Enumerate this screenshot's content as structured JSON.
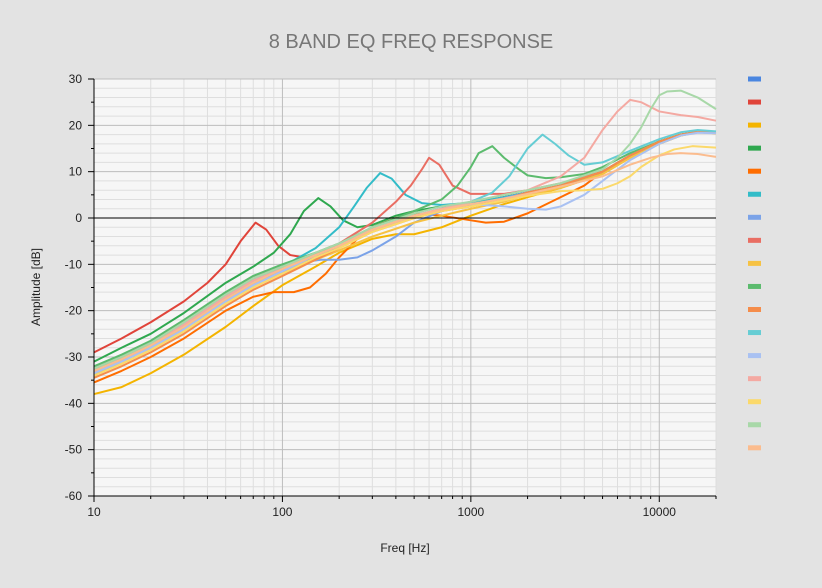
{
  "chart_data": {
    "type": "line",
    "title": "8 BAND EQ FREQ RESPONSE",
    "xlabel": "Freq [Hz]",
    "ylabel": "Amplitude [dB]",
    "x_scale": "log",
    "xlim": [
      10,
      20000
    ],
    "ylim": [
      -60,
      30
    ],
    "x_ticks": [
      10,
      100,
      1000,
      10000
    ],
    "x_tick_labels": [
      "10",
      "100",
      "1000",
      "10000"
    ],
    "y_ticks": [
      -60,
      -50,
      -40,
      -30,
      -20,
      -10,
      0,
      10,
      20,
      30
    ],
    "y_tick_labels": [
      "-60",
      "-50",
      "-40",
      "-30",
      "-20",
      "-10",
      "0",
      "10",
      "20",
      "30"
    ],
    "grid": true,
    "zero_line": true,
    "legend": "right",
    "series": [
      {
        "color": "#4a86e0",
        "x": [
          10,
          14,
          20,
          30,
          50,
          70,
          100,
          150,
          200,
          300,
          500,
          700,
          1000,
          1500,
          2000,
          3000,
          5000,
          7000,
          10000,
          13000,
          16000,
          20000
        ],
        "y": [
          -33,
          -30.5,
          -27.5,
          -23.5,
          -18,
          -14.5,
          -11.5,
          -8.5,
          -6,
          -2.5,
          0.5,
          1.8,
          3,
          4.5,
          5.5,
          7,
          10,
          13.5,
          16.5,
          18,
          18.6,
          18.5
        ]
      },
      {
        "color": "#e0443a",
        "x": [
          10,
          14,
          20,
          30,
          40,
          50,
          60,
          72,
          82,
          95,
          110,
          130,
          160,
          200,
          300,
          500,
          700,
          1000,
          1500,
          2000,
          3000,
          5000,
          7000,
          10000,
          13000,
          16000,
          20000
        ],
        "y": [
          -29,
          -26,
          -22.5,
          -18,
          -14,
          -10,
          -5,
          -1,
          -2.5,
          -6,
          -8,
          -8.5,
          -7.5,
          -6,
          -2.5,
          0.5,
          1.8,
          3,
          4.5,
          5.5,
          7,
          10,
          13.5,
          16.5,
          18,
          18.6,
          18.5
        ]
      },
      {
        "color": "#f4b400",
        "x": [
          10,
          14,
          20,
          30,
          50,
          70,
          100,
          150,
          200,
          300,
          400,
          500,
          700,
          1000,
          1500,
          2000,
          3000,
          5000,
          7000,
          10000,
          13000,
          16000,
          20000
        ],
        "y": [
          -38,
          -36.5,
          -33.5,
          -29.5,
          -23.5,
          -19,
          -14.5,
          -10.5,
          -7.5,
          -4.5,
          -3.5,
          -3.5,
          -2,
          0.5,
          3,
          4.5,
          6.5,
          9.5,
          13,
          16,
          17.8,
          18.5,
          18.3
        ]
      },
      {
        "color": "#2fa84f",
        "x": [
          10,
          14,
          20,
          30,
          50,
          70,
          90,
          110,
          130,
          155,
          180,
          210,
          250,
          300,
          400,
          500,
          700,
          1000,
          1500,
          2000,
          3000,
          5000,
          7000,
          10000,
          13000,
          16000,
          20000
        ],
        "y": [
          -31,
          -28,
          -25,
          -20.5,
          -14,
          -10.5,
          -7.5,
          -3.5,
          1.5,
          4.3,
          2.5,
          -0.5,
          -2,
          -1.5,
          0.5,
          1.5,
          2.5,
          3,
          4.5,
          5.5,
          7,
          10,
          13.5,
          16.5,
          18,
          18.6,
          18.5
        ]
      },
      {
        "color": "#ff6d00",
        "x": [
          10,
          14,
          20,
          30,
          50,
          70,
          90,
          115,
          140,
          170,
          200,
          250,
          300,
          400,
          500,
          700,
          1000,
          1200,
          1500,
          2000,
          3000,
          4000,
          5000,
          7000,
          10000,
          13000,
          16000,
          20000
        ],
        "y": [
          -35.5,
          -33,
          -30,
          -26,
          -20,
          -17,
          -16,
          -16,
          -15,
          -12,
          -8.5,
          -4.5,
          -2,
          0,
          1,
          0.5,
          -0.5,
          -1,
          -0.8,
          1,
          4.5,
          7,
          10,
          13.5,
          16.5,
          18,
          18.6,
          18.5
        ]
      },
      {
        "color": "#33bcc8",
        "x": [
          10,
          14,
          20,
          30,
          50,
          70,
          100,
          150,
          200,
          240,
          280,
          330,
          380,
          450,
          550,
          700,
          1000,
          1500,
          2000,
          3000,
          5000,
          7000,
          10000,
          13000,
          16000,
          20000
        ],
        "y": [
          -32.5,
          -30,
          -27,
          -22.5,
          -16.5,
          -13,
          -10.5,
          -6.5,
          -2,
          2.5,
          6.5,
          9.7,
          8.5,
          5,
          3.2,
          2.8,
          3.3,
          4.5,
          5.5,
          7,
          10,
          13.5,
          16.5,
          18,
          18.6,
          18.5
        ]
      },
      {
        "color": "#7ba3e8",
        "x": [
          10,
          14,
          20,
          30,
          50,
          70,
          100,
          130,
          160,
          200,
          250,
          300,
          400,
          500,
          700,
          1000,
          1500,
          2000,
          3000,
          5000,
          7000,
          10000,
          13000,
          16000,
          20000
        ],
        "y": [
          -34,
          -31,
          -28,
          -24,
          -17.5,
          -14,
          -11.5,
          -9.5,
          -9,
          -9,
          -8.5,
          -7,
          -4,
          -1,
          1.5,
          2.8,
          4.3,
          5.5,
          7,
          10,
          13.5,
          16.5,
          18,
          18.6,
          18.5
        ]
      },
      {
        "color": "#e96e63",
        "x": [
          10,
          14,
          20,
          30,
          50,
          70,
          100,
          150,
          200,
          300,
          400,
          480,
          550,
          600,
          680,
          800,
          1000,
          1500,
          2000,
          3000,
          5000,
          7000,
          10000,
          13000,
          16000,
          20000
        ],
        "y": [
          -32.5,
          -30,
          -27,
          -22.5,
          -16.5,
          -13,
          -10.5,
          -7.5,
          -5.5,
          -1,
          3.5,
          7,
          10.5,
          13,
          11.5,
          7,
          5.2,
          5.2,
          6,
          7.5,
          10,
          13.5,
          16.5,
          18,
          18.6,
          18.5
        ]
      },
      {
        "color": "#f6c244",
        "x": [
          10,
          14,
          20,
          30,
          50,
          70,
          100,
          150,
          200,
          300,
          500,
          700,
          1000,
          1500,
          2000,
          3000,
          5000,
          7000,
          10000,
          13000,
          16000,
          20000
        ],
        "y": [
          -33.5,
          -31,
          -28,
          -23.5,
          -17.5,
          -14,
          -12,
          -9,
          -7,
          -4,
          -1,
          0.5,
          2,
          3.5,
          5,
          6.5,
          9.5,
          13,
          16,
          17.8,
          18.5,
          18.3
        ]
      },
      {
        "color": "#5cbb6e",
        "x": [
          10,
          14,
          20,
          30,
          50,
          70,
          100,
          150,
          200,
          300,
          500,
          700,
          850,
          1000,
          1100,
          1300,
          1500,
          1800,
          2000,
          2500,
          3000,
          4000,
          5000,
          7000,
          10000,
          13000,
          16000,
          20000
        ],
        "y": [
          -32,
          -29.5,
          -26.5,
          -22,
          -16,
          -12.5,
          -10,
          -7.5,
          -5.5,
          -2,
          1.5,
          4,
          7,
          11,
          14,
          15.5,
          13,
          10.5,
          9.2,
          8.6,
          8.8,
          9.5,
          11,
          14,
          16.5,
          18,
          18.6,
          18.5
        ]
      },
      {
        "color": "#f58d4b",
        "x": [
          10,
          14,
          20,
          30,
          50,
          70,
          100,
          150,
          200,
          300,
          500,
          700,
          1000,
          1500,
          2000,
          3000,
          5000,
          7000,
          10000,
          13000,
          16000,
          20000
        ],
        "y": [
          -34.5,
          -32,
          -29,
          -25,
          -19,
          -15.5,
          -12.5,
          -9,
          -6.5,
          -3,
          0,
          1.5,
          2.5,
          4,
          5.5,
          7,
          10,
          13.5,
          16.5,
          18,
          18.6,
          18.5
        ]
      },
      {
        "color": "#66cdd4",
        "x": [
          10,
          14,
          20,
          30,
          50,
          70,
          100,
          150,
          200,
          300,
          500,
          700,
          1000,
          1300,
          1600,
          2000,
          2400,
          2800,
          3300,
          4000,
          5000,
          7000,
          10000,
          13000,
          16000,
          20000
        ],
        "y": [
          -33,
          -30.5,
          -27.5,
          -23,
          -17,
          -13.5,
          -11,
          -8,
          -6,
          -2.5,
          0.5,
          2,
          3.5,
          5.5,
          9,
          15,
          18,
          16,
          13.5,
          11.5,
          12,
          14.5,
          17,
          18.5,
          19,
          18.7
        ]
      },
      {
        "color": "#a9c1f2",
        "x": [
          10,
          14,
          20,
          30,
          50,
          70,
          100,
          150,
          200,
          300,
          500,
          700,
          1000,
          1500,
          2000,
          2500,
          3000,
          4000,
          5000,
          7000,
          10000,
          13000,
          16000,
          20000
        ],
        "y": [
          -33.5,
          -31,
          -28,
          -24,
          -18,
          -14.5,
          -11.5,
          -8,
          -6,
          -2.5,
          0.5,
          2,
          3,
          2.5,
          2,
          1.8,
          2.5,
          5,
          8,
          12.5,
          16,
          17.8,
          18.4,
          18.3
        ]
      },
      {
        "color": "#f4a9a2",
        "x": [
          10,
          14,
          20,
          30,
          50,
          70,
          100,
          150,
          200,
          300,
          500,
          700,
          1000,
          1500,
          2000,
          3000,
          4000,
          5000,
          6000,
          7000,
          8000,
          10000,
          13000,
          16000,
          20000
        ],
        "y": [
          -33,
          -30.5,
          -27.5,
          -23,
          -17,
          -13.5,
          -11,
          -8,
          -6,
          -2.5,
          0.5,
          2,
          3.5,
          5,
          6,
          9,
          13,
          19,
          23,
          25.5,
          25,
          23,
          22.2,
          21.8,
          21
        ]
      },
      {
        "color": "#fbd96b",
        "x": [
          10,
          14,
          20,
          30,
          50,
          70,
          100,
          150,
          200,
          300,
          500,
          700,
          1000,
          1500,
          2000,
          3000,
          4000,
          5000,
          6000,
          7000,
          8000,
          10000,
          12000,
          15000,
          20000
        ],
        "y": [
          -34,
          -31.5,
          -28.5,
          -24.5,
          -18.5,
          -15,
          -12,
          -8.5,
          -6.5,
          -3,
          0,
          1.5,
          2.5,
          3.8,
          4.8,
          5.8,
          6,
          6.3,
          7.5,
          9,
          11,
          13.5,
          14.8,
          15.5,
          15.2
        ]
      },
      {
        "color": "#a8d8a8",
        "x": [
          10,
          14,
          20,
          30,
          50,
          70,
          100,
          150,
          200,
          300,
          500,
          700,
          1000,
          1500,
          2000,
          3000,
          5000,
          6000,
          7000,
          8000,
          9000,
          10000,
          11000,
          13000,
          16000,
          20000
        ],
        "y": [
          -32.5,
          -30,
          -27,
          -22.5,
          -16.5,
          -13,
          -10.5,
          -7.5,
          -5.5,
          -2,
          1,
          2.5,
          3.5,
          5,
          6,
          7.5,
          10.5,
          13,
          16,
          19.5,
          23.5,
          26.5,
          27.3,
          27.5,
          26,
          23.5
        ]
      },
      {
        "color": "#fbbc8e",
        "x": [
          10,
          14,
          20,
          30,
          50,
          70,
          100,
          150,
          200,
          300,
          500,
          700,
          1000,
          1500,
          2000,
          3000,
          5000,
          7000,
          9000,
          11000,
          13000,
          16000,
          20000
        ],
        "y": [
          -33,
          -30.5,
          -27.5,
          -23.5,
          -17.5,
          -14,
          -11,
          -8,
          -6,
          -2.5,
          0.5,
          1.8,
          3,
          4.2,
          5.2,
          6.8,
          9,
          11.5,
          13,
          13.8,
          14,
          13.8,
          13.2
        ]
      }
    ]
  }
}
